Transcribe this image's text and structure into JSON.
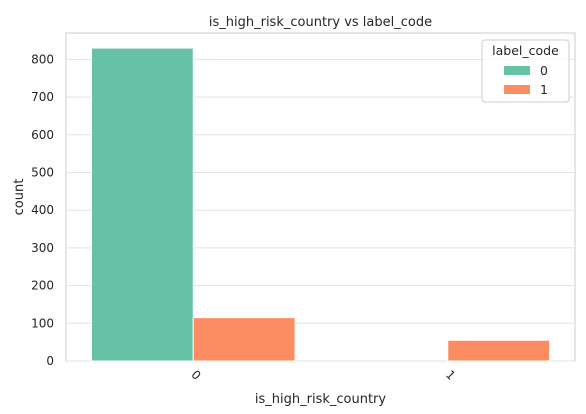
{
  "chart_data": {
    "type": "bar",
    "title": "is_high_risk_country vs label_code",
    "xlabel": "is_high_risk_country",
    "ylabel": "count",
    "categories": [
      "0",
      "1"
    ],
    "series": [
      {
        "name": "0",
        "color": "#66c2a5",
        "values": [
          830,
          0
        ]
      },
      {
        "name": "1",
        "color": "#fc8d62",
        "values": [
          115,
          55
        ]
      }
    ],
    "ylim": [
      0,
      870
    ],
    "yticks": [
      0,
      100,
      200,
      300,
      400,
      500,
      600,
      700,
      800
    ],
    "grid": true,
    "legend": {
      "title": "label_code",
      "placement": "top-right"
    },
    "x_tick_rotation": "rotated-45"
  }
}
